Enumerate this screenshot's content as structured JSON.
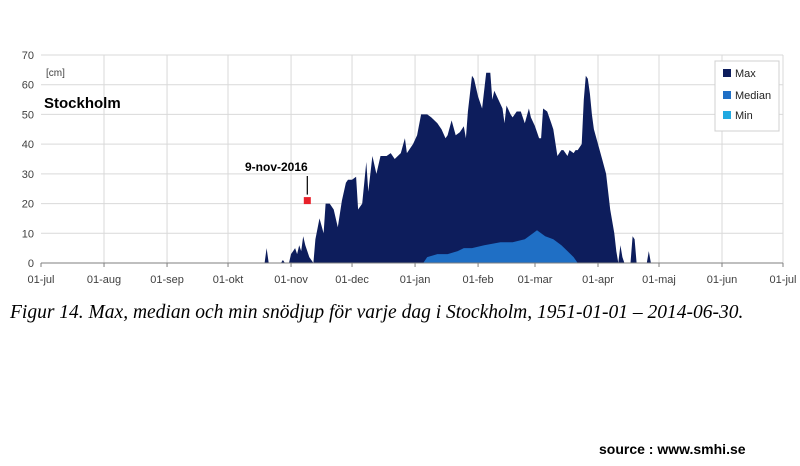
{
  "chart_data": {
    "type": "area",
    "station_label": "Stockholm",
    "unit_label": "[cm]",
    "xlabel": "",
    "ylabel": "",
    "ylim": [
      0,
      70
    ],
    "yticks": [
      0,
      10,
      20,
      30,
      40,
      50,
      60,
      70
    ],
    "x_tick_labels": [
      "01-jul",
      "01-aug",
      "01-sep",
      "01-okt",
      "01-nov",
      "01-dec",
      "01-jan",
      "01-feb",
      "01-mar",
      "01-apr",
      "01-maj",
      "01-jun",
      "01-jul"
    ],
    "x_tick_days": [
      0,
      31,
      62,
      92,
      123,
      153,
      184,
      215,
      243,
      274,
      304,
      335,
      365
    ],
    "grid": true,
    "legend_position": "top-right",
    "series": [
      {
        "name": "Max",
        "color": "#0d1d5c",
        "points": [
          [
            0,
            0
          ],
          [
            110,
            0
          ],
          [
            111,
            5
          ],
          [
            112,
            0
          ],
          [
            118,
            0
          ],
          [
            119,
            1
          ],
          [
            120,
            0
          ],
          [
            122,
            0
          ],
          [
            123,
            3
          ],
          [
            124,
            4
          ],
          [
            125,
            5
          ],
          [
            126,
            3
          ],
          [
            127,
            6
          ],
          [
            128,
            4
          ],
          [
            129,
            9
          ],
          [
            130,
            6
          ],
          [
            131,
            4
          ],
          [
            132,
            2
          ],
          [
            134,
            0
          ],
          [
            135,
            8
          ],
          [
            137,
            15
          ],
          [
            139,
            10
          ],
          [
            140,
            20
          ],
          [
            142,
            20
          ],
          [
            144,
            18
          ],
          [
            146,
            12
          ],
          [
            148,
            21
          ],
          [
            150,
            27
          ],
          [
            151,
            28
          ],
          [
            153,
            28
          ],
          [
            155,
            29
          ],
          [
            156,
            18
          ],
          [
            158,
            20
          ],
          [
            160,
            34
          ],
          [
            161,
            24
          ],
          [
            163,
            36
          ],
          [
            165,
            30
          ],
          [
            167,
            36
          ],
          [
            170,
            36
          ],
          [
            172,
            37
          ],
          [
            174,
            35
          ],
          [
            177,
            37
          ],
          [
            179,
            42
          ],
          [
            180,
            37
          ],
          [
            183,
            40
          ],
          [
            185,
            43
          ],
          [
            187,
            50
          ],
          [
            190,
            50
          ],
          [
            192,
            49
          ],
          [
            195,
            47
          ],
          [
            197,
            45
          ],
          [
            199,
            42
          ],
          [
            200,
            43
          ],
          [
            202,
            48
          ],
          [
            204,
            43
          ],
          [
            206,
            44
          ],
          [
            208,
            46
          ],
          [
            209,
            42
          ],
          [
            210,
            51
          ],
          [
            212,
            63
          ],
          [
            213,
            62
          ],
          [
            215,
            56
          ],
          [
            217,
            52
          ],
          [
            219,
            64
          ],
          [
            221,
            64
          ],
          [
            222,
            55
          ],
          [
            223,
            58
          ],
          [
            225,
            55
          ],
          [
            227,
            52
          ],
          [
            228,
            47
          ],
          [
            229,
            53
          ],
          [
            231,
            50
          ],
          [
            232,
            49
          ],
          [
            234,
            51
          ],
          [
            236,
            51
          ],
          [
            238,
            47
          ],
          [
            240,
            52
          ],
          [
            241,
            49
          ],
          [
            243,
            46
          ],
          [
            245,
            42
          ],
          [
            246,
            42
          ],
          [
            247,
            52
          ],
          [
            249,
            51
          ],
          [
            251,
            47
          ],
          [
            252,
            45
          ],
          [
            254,
            36
          ],
          [
            256,
            38
          ],
          [
            257,
            38
          ],
          [
            259,
            36
          ],
          [
            260,
            38
          ],
          [
            262,
            37
          ],
          [
            263,
            38
          ],
          [
            264,
            38
          ],
          [
            265,
            39
          ],
          [
            266,
            40
          ],
          [
            267,
            55
          ],
          [
            268,
            63
          ],
          [
            269,
            62
          ],
          [
            270,
            57
          ],
          [
            271,
            50
          ],
          [
            272,
            45
          ],
          [
            274,
            40
          ],
          [
            276,
            35
          ],
          [
            278,
            30
          ],
          [
            280,
            18
          ],
          [
            282,
            10
          ],
          [
            283,
            4
          ],
          [
            284,
            0
          ],
          [
            285,
            6
          ],
          [
            286,
            2
          ],
          [
            287,
            0
          ],
          [
            290,
            0
          ],
          [
            291,
            9
          ],
          [
            292,
            8
          ],
          [
            293,
            0
          ],
          [
            298,
            0
          ],
          [
            299,
            4
          ],
          [
            300,
            0
          ],
          [
            365,
            0
          ]
        ]
      },
      {
        "name": "Median",
        "color": "#1f6fc5",
        "points": [
          [
            0,
            0
          ],
          [
            188,
            0
          ],
          [
            190,
            2
          ],
          [
            195,
            3
          ],
          [
            200,
            3
          ],
          [
            205,
            4
          ],
          [
            208,
            5
          ],
          [
            212,
            5
          ],
          [
            218,
            6
          ],
          [
            226,
            7
          ],
          [
            232,
            7
          ],
          [
            238,
            8
          ],
          [
            242,
            10
          ],
          [
            244,
            11
          ],
          [
            248,
            9
          ],
          [
            252,
            8
          ],
          [
            256,
            6
          ],
          [
            259,
            4
          ],
          [
            262,
            2
          ],
          [
            264,
            0
          ],
          [
            365,
            0
          ]
        ]
      },
      {
        "name": "Min",
        "color": "#21a9e1",
        "points": [
          [
            0,
            0
          ],
          [
            365,
            0
          ]
        ]
      }
    ],
    "annotation": {
      "label": "9-nov-2016",
      "x": 131,
      "y": 21,
      "color": "#e8202a"
    }
  },
  "caption": "Figur 14. Max, median och min snödjup för varje dag i Stockholm, 1951-01-01 – 2014-06-30.",
  "source": "source : www.smhi.se"
}
